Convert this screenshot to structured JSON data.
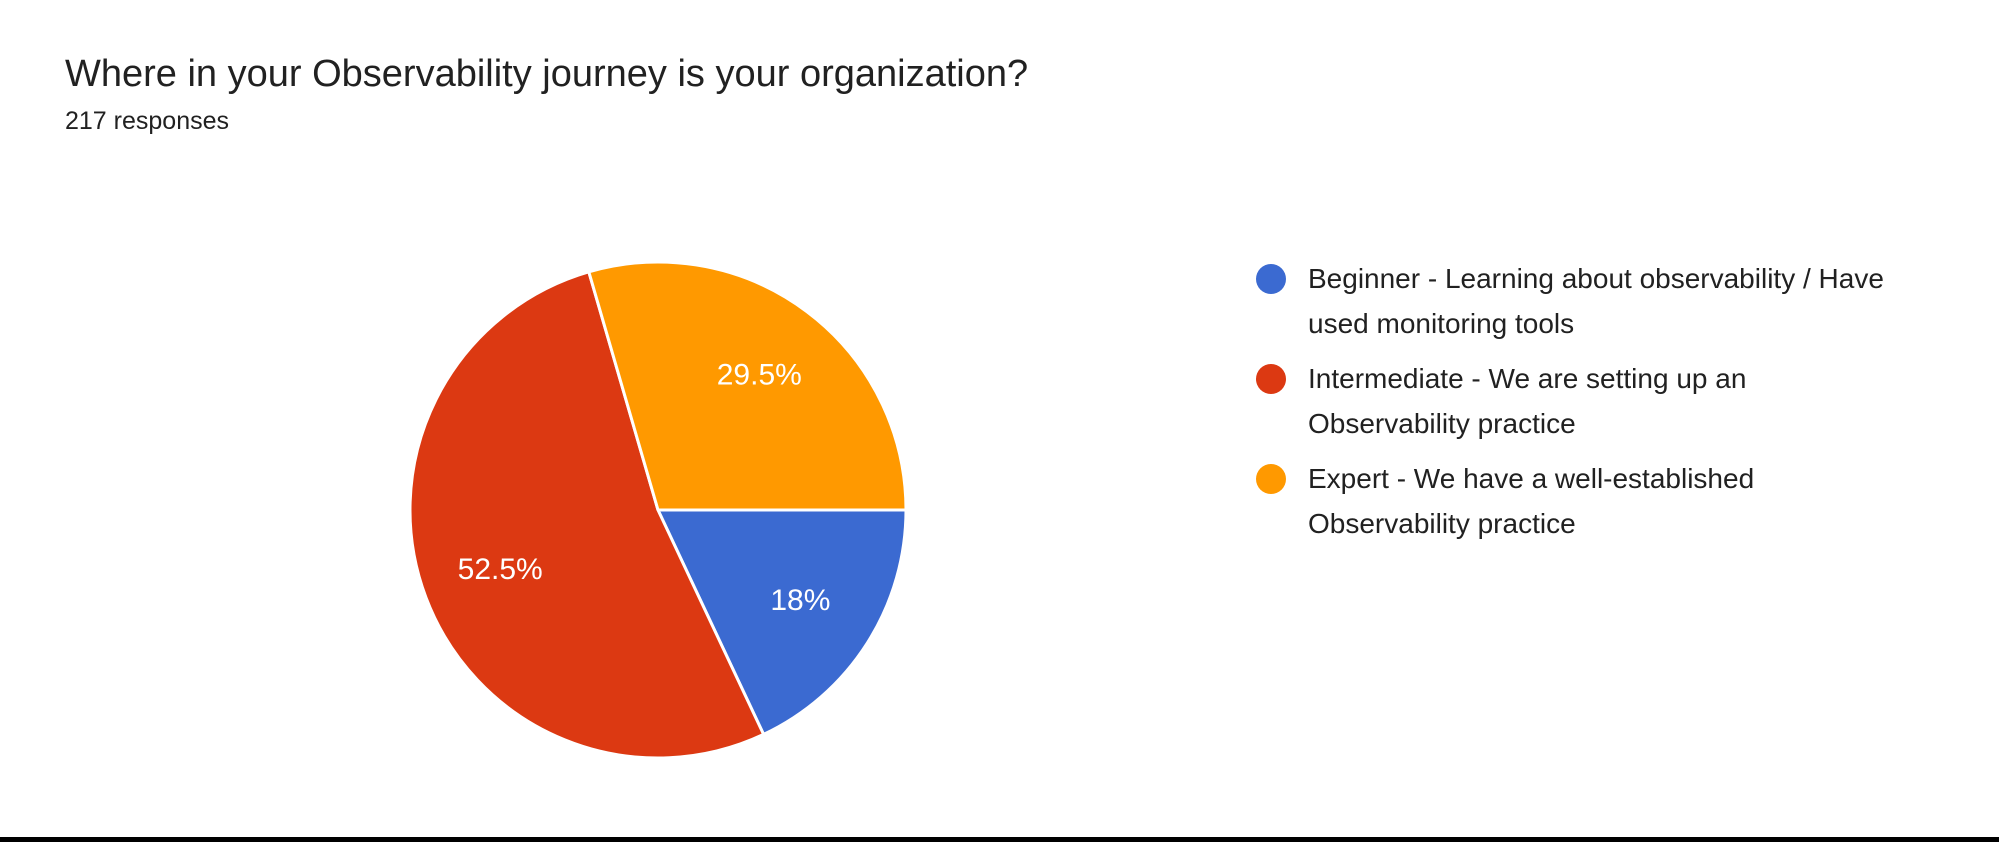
{
  "header": {
    "title": "Where in your Observability journey is your organization?",
    "responses_count": "217 responses"
  },
  "chart_data": {
    "type": "pie",
    "title": "Where in your Observability journey is your organization?",
    "subtitle": "217 responses",
    "total_responses": 217,
    "start_angle_deg": 0,
    "direction": "clockwise",
    "legend_position": "right",
    "slice_border_color": "#ffffff",
    "label_color": "#ffffff",
    "slices": [
      {
        "label": "Beginner - Learning about observability / Have used monitoring tools",
        "value_pct": 18,
        "display": "18%",
        "color": "#3B6AD1"
      },
      {
        "label": "Intermediate - We are setting up an Observability practice",
        "value_pct": 52.5,
        "display": "52.5%",
        "color": "#DC3912"
      },
      {
        "label": "Expert - We have a well-established Observability practice",
        "value_pct": 29.5,
        "display": "29.5%",
        "color": "#FF9900"
      }
    ]
  }
}
